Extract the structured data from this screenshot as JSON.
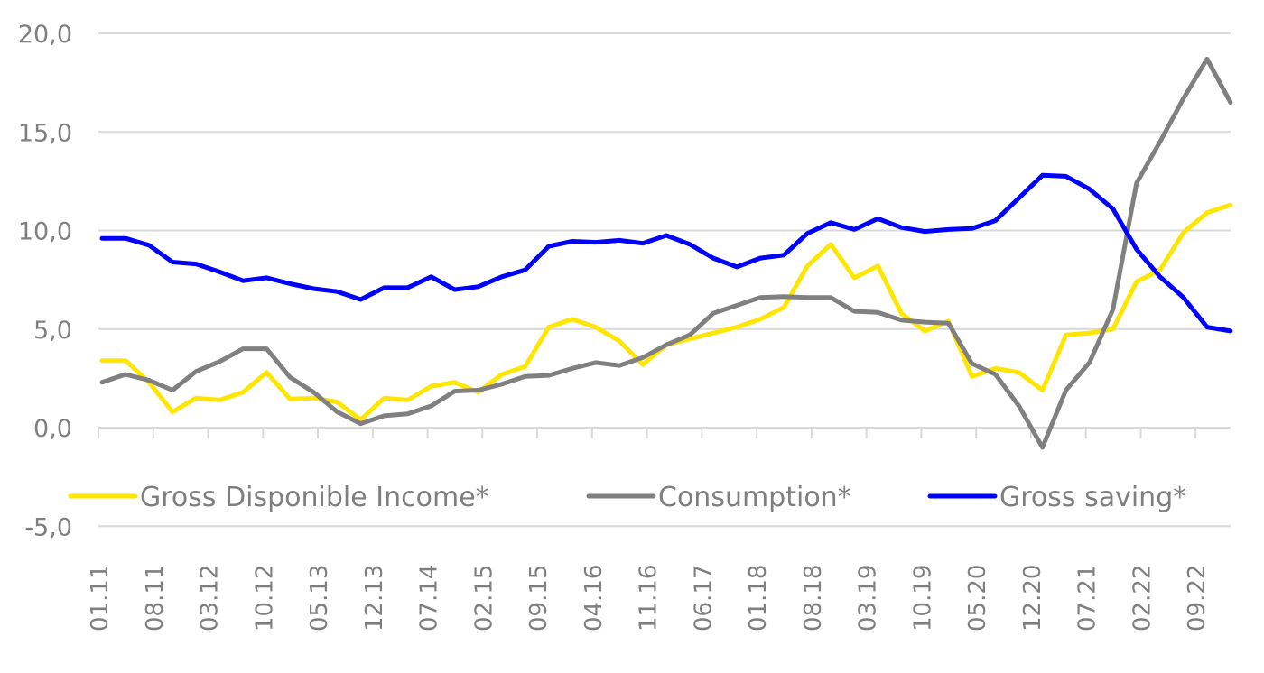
{
  "chart_data": {
    "type": "line",
    "title": "",
    "xlabel": "",
    "ylabel": "",
    "ylim": [
      -5,
      20
    ],
    "yticks": [
      20,
      15,
      10,
      5,
      0,
      -5
    ],
    "ytick_labels": [
      "20,0",
      "15,0",
      "10,0",
      "5,0",
      "0,0",
      "-5,0"
    ],
    "grid": "horizontal",
    "legend_position": "bottom (inside plot, just above -5 gridline)",
    "x_axis_labels": [
      "01.11",
      "08.11",
      "03.12",
      "10.12",
      "05.13",
      "12.13",
      "07.14",
      "02.15",
      "09.15",
      "04.16",
      "11.16",
      "06.17",
      "01.18",
      "08.18",
      "03.19",
      "10.19",
      "05.20",
      "12.20",
      "07.21",
      "02.22",
      "09.22"
    ],
    "x_axis_label_interval_months": 7,
    "x": [
      "01.11",
      "04.11",
      "07.11",
      "10.11",
      "01.12",
      "04.12",
      "07.12",
      "10.12",
      "01.13",
      "04.13",
      "07.13",
      "10.13",
      "01.14",
      "04.14",
      "07.14",
      "10.14",
      "01.15",
      "04.15",
      "07.15",
      "10.15",
      "01.16",
      "04.16",
      "07.16",
      "10.16",
      "01.17",
      "04.17",
      "07.17",
      "10.17",
      "01.18",
      "04.18",
      "07.18",
      "10.18",
      "01.19",
      "04.19",
      "07.19",
      "10.19",
      "01.20",
      "04.20",
      "07.20",
      "10.20",
      "01.21",
      "04.21",
      "07.21",
      "10.21",
      "01.22",
      "04.22",
      "07.22",
      "10.22",
      "01.23"
    ],
    "series": [
      {
        "name": "Gross Disponible Income*",
        "color": "#ffe600",
        "values": [
          3.4,
          3.4,
          2.3,
          0.8,
          1.5,
          1.4,
          1.8,
          2.8,
          1.45,
          1.5,
          1.3,
          0.4,
          1.5,
          1.4,
          2.1,
          2.3,
          1.8,
          2.7,
          3.1,
          5.1,
          5.5,
          5.1,
          4.4,
          3.2,
          4.2,
          4.5,
          4.8,
          5.1,
          5.5,
          6.1,
          8.2,
          9.3,
          7.6,
          8.2,
          5.8,
          4.9,
          5.4,
          2.6,
          3.0,
          2.8,
          1.9,
          4.7,
          4.8,
          5.0,
          7.4,
          8.0,
          9.9,
          10.9,
          11.3
        ]
      },
      {
        "name": "Consumption*",
        "color": "#808080",
        "values": [
          2.3,
          2.7,
          2.4,
          1.9,
          2.85,
          3.35,
          4.0,
          4.0,
          2.55,
          1.8,
          0.8,
          0.2,
          0.6,
          0.7,
          1.1,
          1.85,
          1.9,
          2.2,
          2.6,
          2.65,
          3.0,
          3.3,
          3.15,
          3.55,
          4.2,
          4.7,
          5.8,
          6.2,
          6.6,
          6.65,
          6.6,
          6.6,
          5.9,
          5.85,
          5.45,
          5.35,
          5.3,
          3.25,
          2.7,
          1.1,
          -1.0,
          1.9,
          3.3,
          6.0,
          12.4,
          14.5,
          16.7,
          18.7,
          16.5
        ]
      },
      {
        "name": "Gross saving*",
        "color": "#0000ff",
        "values": [
          9.6,
          9.6,
          9.25,
          8.4,
          8.3,
          7.9,
          7.45,
          7.6,
          7.3,
          7.05,
          6.9,
          6.5,
          7.1,
          7.1,
          7.65,
          7.0,
          7.15,
          7.65,
          8.0,
          9.2,
          9.45,
          9.4,
          9.5,
          9.35,
          9.75,
          9.3,
          8.6,
          8.15,
          8.6,
          8.75,
          9.85,
          10.4,
          10.05,
          10.6,
          10.15,
          9.95,
          10.05,
          10.1,
          10.5,
          11.65,
          12.8,
          12.75,
          12.1,
          11.1,
          9.05,
          7.65,
          6.6,
          5.1,
          4.9
        ]
      }
    ]
  }
}
